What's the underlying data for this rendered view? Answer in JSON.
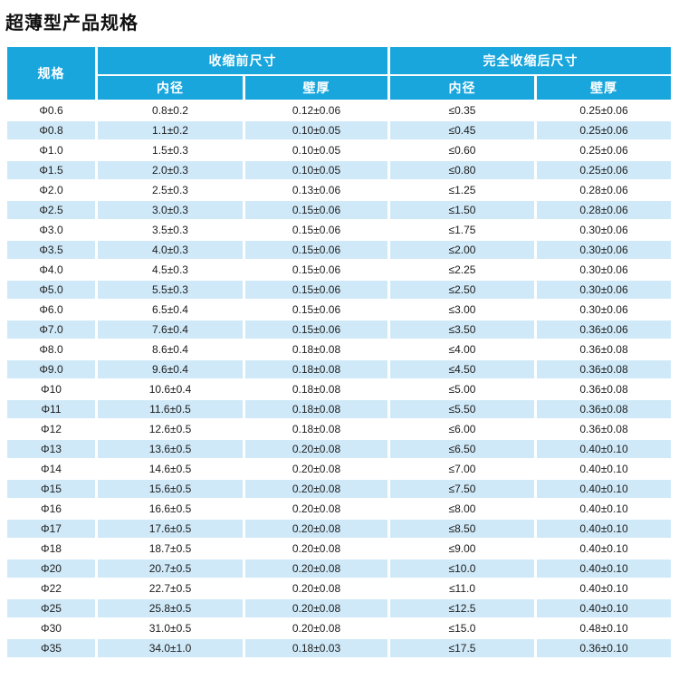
{
  "title": "超薄型产品规格",
  "table": {
    "header": {
      "spec": "规格",
      "before_group": "收缩前尺寸",
      "after_group": "完全收缩后尺寸",
      "sub_headers": [
        "内径",
        "壁厚",
        "内径",
        "壁厚"
      ]
    },
    "rows": [
      [
        "Φ0.6",
        "0.8±0.2",
        "0.12±0.06",
        "≤0.35",
        "0.25±0.06"
      ],
      [
        "Φ0.8",
        "1.1±0.2",
        "0.10±0.05",
        "≤0.45",
        "0.25±0.06"
      ],
      [
        "Φ1.0",
        "1.5±0.3",
        "0.10±0.05",
        "≤0.60",
        "0.25±0.06"
      ],
      [
        "Φ1.5",
        "2.0±0.3",
        "0.10±0.05",
        "≤0.80",
        "0.25±0.06"
      ],
      [
        "Φ2.0",
        "2.5±0.3",
        "0.13±0.06",
        "≤1.25",
        "0.28±0.06"
      ],
      [
        "Φ2.5",
        "3.0±0.3",
        "0.15±0.06",
        "≤1.50",
        "0.28±0.06"
      ],
      [
        "Φ3.0",
        "3.5±0.3",
        "0.15±0.06",
        "≤1.75",
        "0.30±0.06"
      ],
      [
        "Φ3.5",
        "4.0±0.3",
        "0.15±0.06",
        "≤2.00",
        "0.30±0.06"
      ],
      [
        "Φ4.0",
        "4.5±0.3",
        "0.15±0.06",
        "≤2.25",
        "0.30±0.06"
      ],
      [
        "Φ5.0",
        "5.5±0.3",
        "0.15±0.06",
        "≤2.50",
        "0.30±0.06"
      ],
      [
        "Φ6.0",
        "6.5±0.4",
        "0.15±0.06",
        "≤3.00",
        "0.30±0.06"
      ],
      [
        "Φ7.0",
        "7.6±0.4",
        "0.15±0.06",
        "≤3.50",
        "0.36±0.06"
      ],
      [
        "Φ8.0",
        "8.6±0.4",
        "0.18±0.08",
        "≤4.00",
        "0.36±0.08"
      ],
      [
        "Φ9.0",
        "9.6±0.4",
        "0.18±0.08",
        "≤4.50",
        "0.36±0.08"
      ],
      [
        "Φ10",
        "10.6±0.4",
        "0.18±0.08",
        "≤5.00",
        "0.36±0.08"
      ],
      [
        "Φ11",
        "11.6±0.5",
        "0.18±0.08",
        "≤5.50",
        "0.36±0.08"
      ],
      [
        "Φ12",
        "12.6±0.5",
        "0.18±0.08",
        "≤6.00",
        "0.36±0.08"
      ],
      [
        "Φ13",
        "13.6±0.5",
        "0.20±0.08",
        "≤6.50",
        "0.40±0.10"
      ],
      [
        "Φ14",
        "14.6±0.5",
        "0.20±0.08",
        "≤7.00",
        "0.40±0.10"
      ],
      [
        "Φ15",
        "15.6±0.5",
        "0.20±0.08",
        "≤7.50",
        "0.40±0.10"
      ],
      [
        "Φ16",
        "16.6±0.5",
        "0.20±0.08",
        "≤8.00",
        "0.40±0.10"
      ],
      [
        "Φ17",
        "17.6±0.5",
        "0.20±0.08",
        "≤8.50",
        "0.40±0.10"
      ],
      [
        "Φ18",
        "18.7±0.5",
        "0.20±0.08",
        "≤9.00",
        "0.40±0.10"
      ],
      [
        "Φ20",
        "20.7±0.5",
        "0.20±0.08",
        "≤10.0",
        "0.40±0.10"
      ],
      [
        "Φ22",
        "22.7±0.5",
        "0.20±0.08",
        "≤11.0",
        "0.40±0.10"
      ],
      [
        "Φ25",
        "25.8±0.5",
        "0.20±0.08",
        "≤12.5",
        "0.40±0.10"
      ],
      [
        "Φ30",
        "31.0±0.5",
        "0.20±0.08",
        "≤15.0",
        "0.48±0.10"
      ],
      [
        "Φ35",
        "34.0±1.0",
        "0.18±0.03",
        "≤17.5",
        "0.36±0.10"
      ]
    ]
  },
  "colors": {
    "header_bg": "#18a6dd",
    "stripe_bg": "#cfe9f8",
    "header_text": "#ffffff",
    "body_text": "#1c1c1c"
  }
}
